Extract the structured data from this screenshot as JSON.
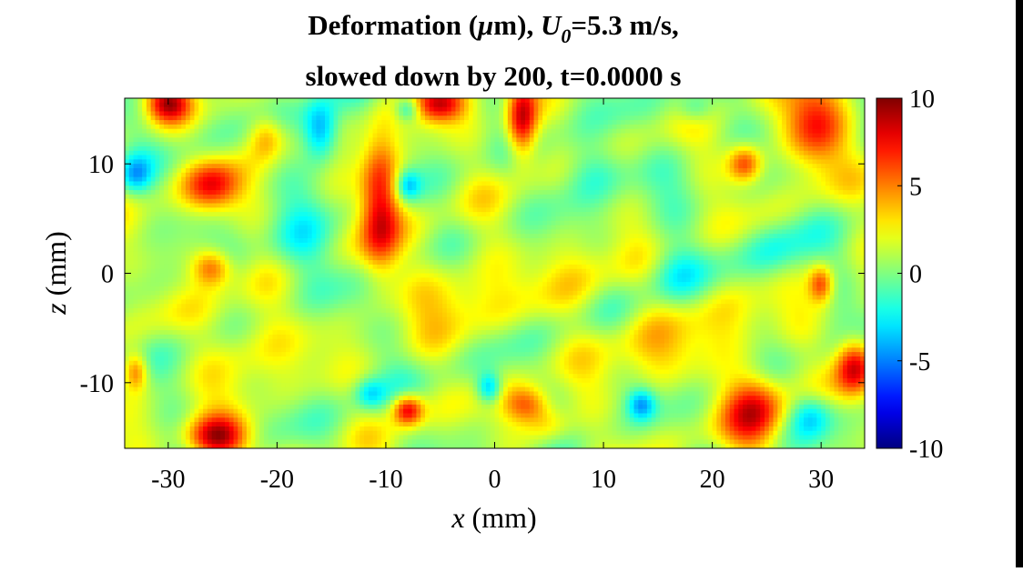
{
  "chart_data": {
    "type": "heatmap",
    "title": {
      "line1_prefix": "Deformation (",
      "mu": "μ",
      "line1_unit": "m), ",
      "u_symbol": "U",
      "u_subscript": "0",
      "line1_suffix": "=5.3 m/s,",
      "line2": "slowed down by 200, t=0.0000 s"
    },
    "xlabel_var": "x",
    "xlabel_unit": " (mm)",
    "ylabel_var": "z",
    "ylabel_unit": " (mm)",
    "xlim": [
      -34,
      34
    ],
    "ylim": [
      -16,
      16
    ],
    "x_ticks": [
      -30,
      -20,
      -10,
      0,
      10,
      20,
      30
    ],
    "y_ticks": [
      10,
      0,
      -10
    ],
    "colorbar": {
      "colormap": "jet",
      "clim": [
        -10,
        10
      ],
      "ticks": [
        10,
        5,
        0,
        -5,
        -10
      ]
    },
    "field_background_um": 0.8,
    "features": [
      {
        "x": -10.5,
        "z": 6.5,
        "value": 7.5,
        "sx": 1.3,
        "sz": 4.5
      },
      {
        "x": -26,
        "z": 8,
        "value": 6,
        "sx": 1.8,
        "sz": 1.6
      },
      {
        "x": -25.5,
        "z": -15,
        "value": 8.5,
        "sx": 2.0,
        "sz": 1.4
      },
      {
        "x": -30,
        "z": 15.5,
        "value": 7,
        "sx": 1.4,
        "sz": 1.2
      },
      {
        "x": -5,
        "z": 15.5,
        "value": 7,
        "sx": 1.6,
        "sz": 1.2
      },
      {
        "x": 2.5,
        "z": 14,
        "value": 8.5,
        "sx": 1.0,
        "sz": 2.5
      },
      {
        "x": 29.5,
        "z": 13.5,
        "value": 6.5,
        "sx": 2.0,
        "sz": 2.8
      },
      {
        "x": 23,
        "z": 10,
        "value": 6,
        "sx": 1.1,
        "sz": 1.2
      },
      {
        "x": 24,
        "z": -12.5,
        "value": 6.5,
        "sx": 2.0,
        "sz": 2.5
      },
      {
        "x": 33,
        "z": -8.5,
        "value": 7,
        "sx": 1.2,
        "sz": 1.8
      },
      {
        "x": -8,
        "z": -12.5,
        "value": 7.5,
        "sx": 1.0,
        "sz": 1.0
      },
      {
        "x": -26,
        "z": 0.5,
        "value": 5.5,
        "sx": 1.3,
        "sz": 1.2
      },
      {
        "x": 3,
        "z": -12,
        "value": 5,
        "sx": 1.5,
        "sz": 1.2
      },
      {
        "x": -33,
        "z": -9,
        "value": 5,
        "sx": 0.8,
        "sz": 1.2
      },
      {
        "x": 30,
        "z": -1,
        "value": 5.5,
        "sx": 0.8,
        "sz": 1.2
      },
      {
        "x": -21,
        "z": 12.5,
        "value": 4,
        "sx": 1.2,
        "sz": 1.5
      },
      {
        "x": -16,
        "z": 13,
        "value": -6.5,
        "sx": 1.2,
        "sz": 2.0
      },
      {
        "x": -8,
        "z": 8,
        "value": -4,
        "sx": 0.8,
        "sz": 1.0
      },
      {
        "x": -8,
        "z": 15,
        "value": -4,
        "sx": 0.8,
        "sz": 0.8
      },
      {
        "x": -0.5,
        "z": -10.5,
        "value": -5,
        "sx": 0.8,
        "sz": 1.0
      },
      {
        "x": 13.5,
        "z": -12,
        "value": -4.5,
        "sx": 0.9,
        "sz": 1.0
      },
      {
        "x": 29,
        "z": -13,
        "value": -4,
        "sx": 1.4,
        "sz": 1.5
      },
      {
        "x": -33,
        "z": 9,
        "value": -3.5,
        "sx": 1.0,
        "sz": 1.2
      },
      {
        "x": 9,
        "z": 9.5,
        "value": -3,
        "sx": 2.2,
        "sz": 2.0
      },
      {
        "x": -18,
        "z": 2,
        "value": -2.5,
        "sx": 2.5,
        "sz": 2.5
      },
      {
        "x": 16.5,
        "z": 0,
        "value": -2.5,
        "sx": 2.0,
        "sz": 2.0
      },
      {
        "x": 26,
        "z": 2,
        "value": -2.5,
        "sx": 2.0,
        "sz": 2.0
      },
      {
        "x": -11.5,
        "z": -11,
        "value": -3.5,
        "sx": 1.0,
        "sz": 1.0
      },
      {
        "x": 18.5,
        "z": 15,
        "value": -3,
        "sx": 1.2,
        "sz": 1.0
      },
      {
        "x": -3,
        "z": -2,
        "value": 2.5,
        "sx": 3.0,
        "sz": 3.0
      },
      {
        "x": 14,
        "z": -7,
        "value": 2.5,
        "sx": 3.0,
        "sz": 2.5
      },
      {
        "x": -22,
        "z": -6,
        "value": 2.5,
        "sx": 2.5,
        "sz": 3.0
      },
      {
        "x": 8,
        "z": 0,
        "value": 2,
        "sx": 2.5,
        "sz": 2.5
      },
      {
        "x": 22,
        "z": -4,
        "value": 2,
        "sx": 2.5,
        "sz": 2.5
      },
      {
        "x": 5,
        "z": -14,
        "value": 3,
        "sx": 1.5,
        "sz": 1.2
      }
    ]
  }
}
